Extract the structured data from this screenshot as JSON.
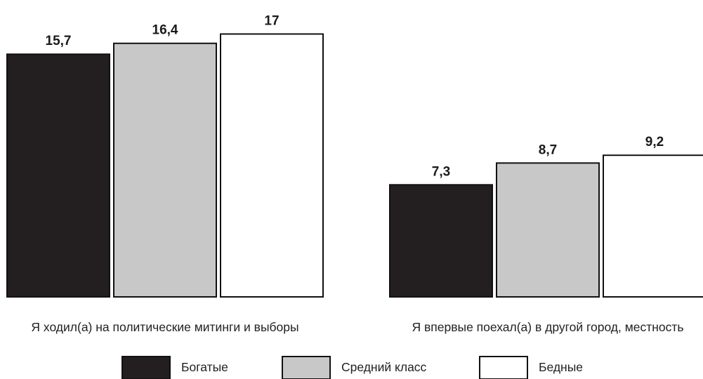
{
  "chart_data": {
    "type": "bar",
    "categories": [
      "Я ходил(а) на политические митинги и выборы",
      "Я впервые поехал(а) в другой город, местность"
    ],
    "series": [
      {
        "name": "Богатые",
        "color": "#231f20",
        "values": [
          15.7,
          7.3
        ],
        "labels": [
          "15,7",
          "7,3"
        ]
      },
      {
        "name": "Средний класс",
        "color": "#c8c8c8",
        "values": [
          16.4,
          8.7
        ],
        "labels": [
          "16,4",
          "8,7"
        ]
      },
      {
        "name": "Бедные",
        "color": "#ffffff",
        "values": [
          17,
          9.2
        ],
        "labels": [
          "17",
          "9,2"
        ]
      }
    ],
    "ylim": [
      0,
      19
    ],
    "grid": false,
    "legend_position": "bottom"
  }
}
